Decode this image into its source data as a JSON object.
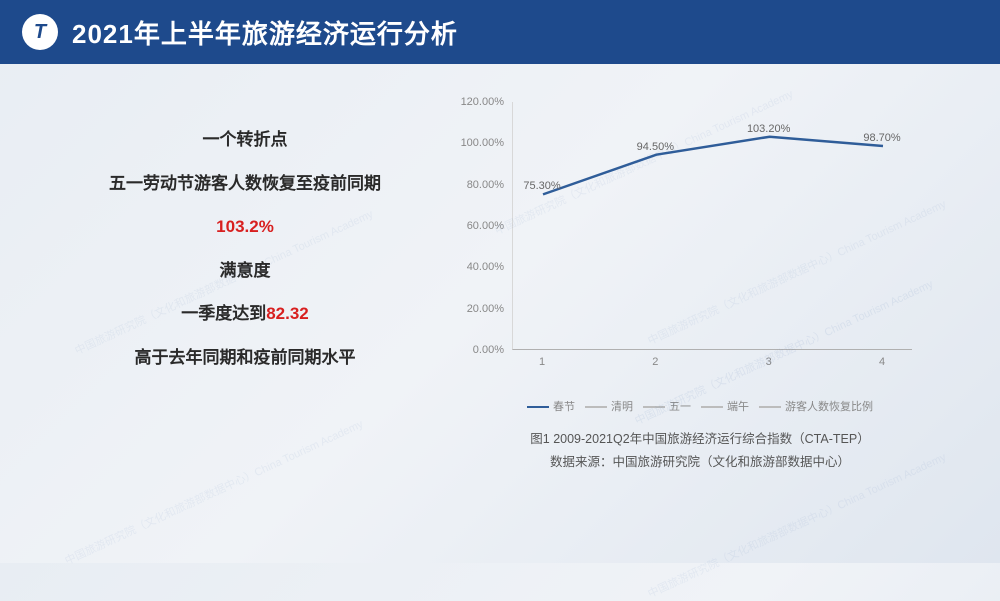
{
  "header": {
    "title": "2021年上半年旅游经济运行分析",
    "logo_letter": "T"
  },
  "left_panel": {
    "l1": "一个转折点",
    "l2": "五一劳动节游客人数恢复至疫前同期",
    "l3_value": "103.2%",
    "l4": "满意度",
    "l5_prefix": "一季度达到",
    "l5_value": "82.32",
    "l6": "高于去年同期和疫前同期水平"
  },
  "chart": {
    "type": "line",
    "series_color": "#2f5d99",
    "inactive_color": "#bcbcbc",
    "grid_color": "#d8d8d8",
    "background_color": "transparent",
    "yticks": [
      "0.00%",
      "20.00%",
      "40.00%",
      "60.00%",
      "80.00%",
      "100.00%",
      "120.00%"
    ],
    "ylim_min": 0,
    "ylim_max": 120,
    "xticks": [
      "1",
      "2",
      "3",
      "4"
    ],
    "x_count": 4,
    "series": {
      "name": "游客人数恢复比例",
      "values": [
        75.3,
        94.5,
        103.2,
        98.7
      ],
      "labels": [
        "75.30%",
        "94.50%",
        "103.20%",
        "98.70%"
      ]
    },
    "legend_items": [
      "春节",
      "清明",
      "五一",
      "端午",
      "游客人数恢复比例"
    ],
    "line_width": 2.5,
    "marker_style": "none",
    "label_fontsize": 11,
    "tick_fontsize": 11,
    "tick_color": "#888888"
  },
  "caption": {
    "line1": "图1  2009-2021Q2年中国旅游经济运行综合指数（CTA-TEP）",
    "line2": "数据来源：中国旅游研究院（文化和旅游部数据中心）"
  },
  "watermark_text": "中国旅游研究院（文化和旅游部数据中心）China Tourism Academy"
}
